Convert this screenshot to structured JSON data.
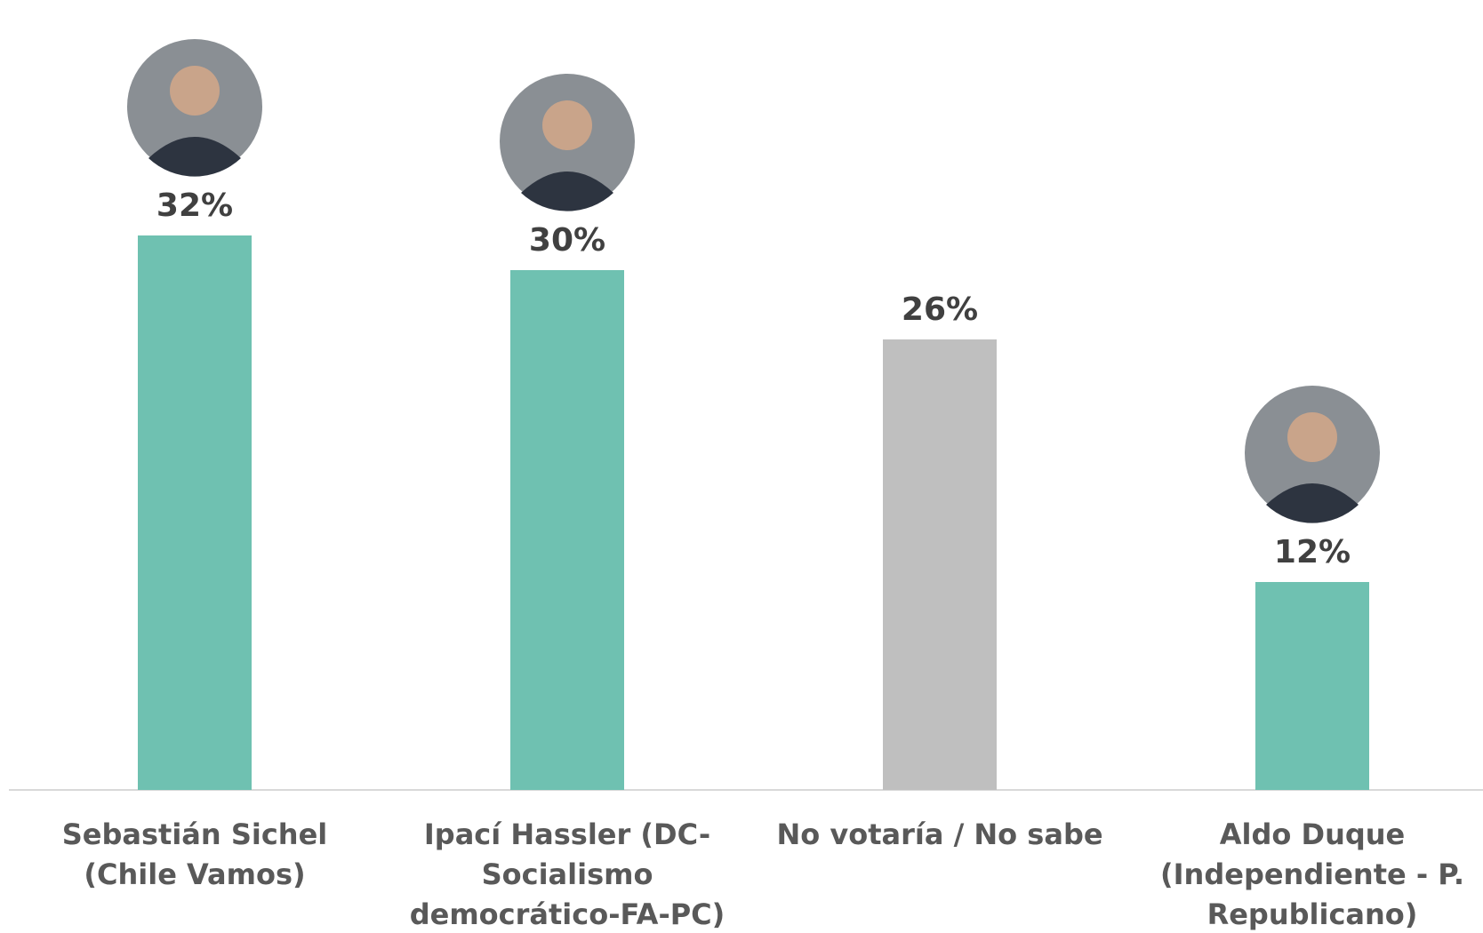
{
  "chart_data": {
    "type": "bar",
    "categories": [
      [
        "Sebastián Sichel",
        "(Chile Vamos)"
      ],
      [
        "Ipací Hassler (DC-",
        "Socialismo",
        "democrático-FA-PC)"
      ],
      [
        "No votaría / No sabe"
      ],
      [
        "Aldo Duque",
        "(Independiente - P.",
        "Republicano)"
      ]
    ],
    "values": [
      32,
      30,
      26,
      12
    ],
    "value_labels": [
      "32%",
      "30%",
      "26%",
      "12%"
    ],
    "bar_colors": [
      "#6fc1b1",
      "#6fc1b1",
      "#bfbfbf",
      "#6fc1b1"
    ],
    "photos": [
      "person-photo",
      "person-photo",
      "",
      "person-photo"
    ],
    "ylim": [
      0,
      32
    ]
  }
}
